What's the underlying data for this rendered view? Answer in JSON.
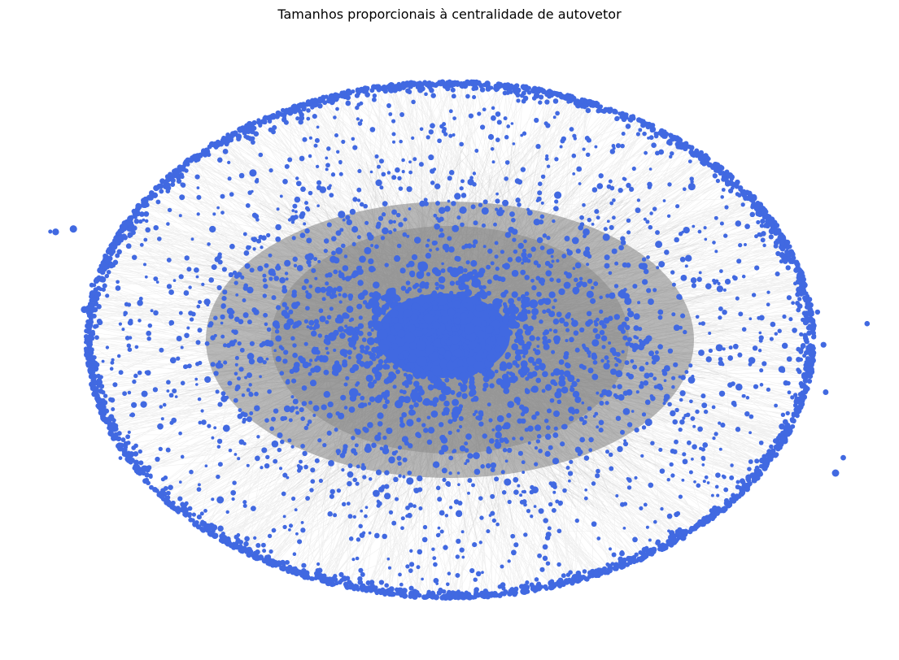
{
  "figure": {
    "title": "Tamanhos proporcionais à centralidade de autovetor"
  },
  "graph": {
    "type": "network",
    "layout": "radial",
    "node_color": "#4169e1",
    "edge_color": "#808080",
    "background": "#ffffff",
    "axes_visible": false
  }
}
